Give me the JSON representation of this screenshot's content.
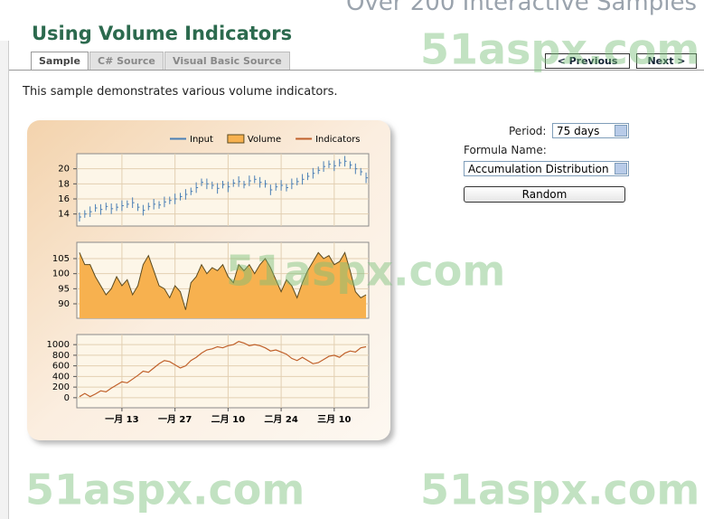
{
  "banner": "Over 200 Interactive Samples",
  "header": {
    "title": "Using Volume Indicators"
  },
  "tabs": [
    "Sample",
    "C# Source",
    "Visual Basic Source"
  ],
  "nav": {
    "previous": "< Previous",
    "next": "Next >"
  },
  "description": "This sample demonstrates various volume indicators.",
  "controls": {
    "period_label": "Period:",
    "period_value": "75 days",
    "formula_label": "Formula Name:",
    "formula_value": "Accumulation Distribution",
    "button": "Random"
  },
  "watermark": "51aspx.com",
  "chart_data": [
    {
      "type": "hilo",
      "ylim": [
        12.4,
        22
      ],
      "yticks": [
        14,
        16,
        18,
        20
      ],
      "grid": true,
      "series": [
        {
          "name": "Input",
          "color": "#4a7fb5",
          "values": [
            13.6,
            14.0,
            14.3,
            14.8,
            14.6,
            15.0,
            14.7,
            14.9,
            15.1,
            15.3,
            15.5,
            14.9,
            14.5,
            15.0,
            15.3,
            15.2,
            15.6,
            15.8,
            16.0,
            16.3,
            16.6,
            17.0,
            17.5,
            18.2,
            18.0,
            17.8,
            17.4,
            17.9,
            17.6,
            18.1,
            18.3,
            17.9,
            18.4,
            18.6,
            18.2,
            18.0,
            17.2,
            17.6,
            17.8,
            17.5,
            18.0,
            18.3,
            18.6,
            19.0,
            19.4,
            19.8,
            20.3,
            20.6,
            20.4,
            20.8,
            21.0,
            20.5,
            20.0,
            19.6,
            18.8
          ],
          "high": [
            14.2,
            14.5,
            15.0,
            15.3,
            15.3,
            15.5,
            15.4,
            15.4,
            15.8,
            15.8,
            16.2,
            15.4,
            15.2,
            15.5,
            16.0,
            15.7,
            16.3,
            16.3,
            16.7,
            16.8,
            17.3,
            17.5,
            18.2,
            18.7,
            18.7,
            18.3,
            18.1,
            18.4,
            18.3,
            18.6,
            19.0,
            18.4,
            19.1,
            19.1,
            18.9,
            18.5,
            17.9,
            18.1,
            18.5,
            18.0,
            18.7,
            18.8,
            19.3,
            19.5,
            20.1,
            20.3,
            21.0,
            21.1,
            21.1,
            21.3,
            21.7,
            21.0,
            20.7,
            20.1,
            19.5
          ],
          "low": [
            13.0,
            13.5,
            13.6,
            14.3,
            13.9,
            14.5,
            14.0,
            14.4,
            14.4,
            14.8,
            14.8,
            14.4,
            13.8,
            14.5,
            14.6,
            14.7,
            14.9,
            15.3,
            15.3,
            15.8,
            15.9,
            16.5,
            16.8,
            17.7,
            17.3,
            17.3,
            16.7,
            17.4,
            16.9,
            17.6,
            17.6,
            17.4,
            17.7,
            18.1,
            17.5,
            17.5,
            16.5,
            17.1,
            17.1,
            17.0,
            17.3,
            17.8,
            17.9,
            18.5,
            18.7,
            19.3,
            19.6,
            20.1,
            19.7,
            20.3,
            20.3,
            20.0,
            19.3,
            19.1,
            18.1
          ]
        }
      ]
    },
    {
      "type": "area",
      "ylim": [
        85.2,
        110.4
      ],
      "yticks": [
        90,
        95,
        100,
        105
      ],
      "grid": true,
      "series": [
        {
          "name": "Volume",
          "color": "#f7b14f",
          "line_color": "#5a4a20",
          "values": [
            107,
            103,
            103,
            99,
            96,
            93,
            95,
            99,
            96,
            98,
            93,
            96,
            103,
            106,
            101,
            96,
            95,
            92,
            96,
            94,
            88,
            97,
            99,
            103,
            100,
            102,
            101,
            103,
            99,
            97,
            103,
            101,
            103,
            100,
            103,
            105,
            102,
            98,
            94,
            98,
            96,
            92,
            97,
            101,
            104,
            107,
            105,
            106,
            103,
            104,
            107,
            101,
            94,
            92,
            93
          ]
        }
      ]
    },
    {
      "type": "line",
      "ylim": [
        -190,
        1190
      ],
      "yticks": [
        0,
        200,
        400,
        600,
        800,
        1000
      ],
      "grid": true,
      "categories": [
        null,
        null,
        null,
        null,
        null,
        null,
        null,
        null,
        "一月 13",
        null,
        null,
        null,
        null,
        null,
        null,
        null,
        null,
        null,
        "一月 27",
        null,
        null,
        null,
        null,
        null,
        null,
        null,
        null,
        null,
        "二月 10",
        null,
        null,
        null,
        null,
        null,
        null,
        null,
        null,
        null,
        "二月 24",
        null,
        null,
        null,
        null,
        null,
        null,
        null,
        null,
        null,
        "三月 10",
        null,
        null,
        null,
        null,
        null,
        null
      ],
      "series": [
        {
          "name": "Indicators",
          "color": "#c0602a",
          "values": [
            20,
            80,
            20,
            70,
            130,
            110,
            180,
            240,
            300,
            280,
            350,
            420,
            500,
            480,
            560,
            640,
            700,
            680,
            620,
            560,
            600,
            700,
            760,
            840,
            900,
            920,
            960,
            940,
            980,
            1000,
            1060,
            1030,
            980,
            1000,
            980,
            940,
            880,
            900,
            860,
            820,
            740,
            700,
            760,
            700,
            640,
            660,
            720,
            780,
            800,
            760,
            840,
            880,
            860,
            940,
            960
          ]
        }
      ]
    }
  ]
}
